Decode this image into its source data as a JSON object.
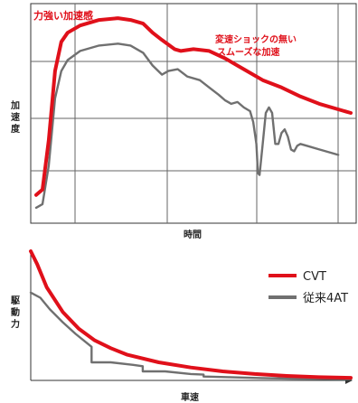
{
  "chart_data": [
    {
      "type": "line",
      "title": "",
      "xlabel": "時間",
      "ylabel": [
        "加",
        "速",
        "度"
      ],
      "grid": true,
      "series": [
        {
          "name": "",
          "color": "#e0101a",
          "x": [
            0,
            2,
            4,
            6,
            8,
            10,
            14,
            20,
            26,
            30,
            34,
            37,
            40,
            44,
            46,
            50,
            55,
            60,
            66,
            72,
            78,
            84,
            90,
            96,
            100
          ],
          "y": [
            0.02,
            0.05,
            0.32,
            0.7,
            0.86,
            0.91,
            0.95,
            0.98,
            0.99,
            0.98,
            0.96,
            0.91,
            0.87,
            0.82,
            0.81,
            0.82,
            0.81,
            0.77,
            0.71,
            0.65,
            0.61,
            0.56,
            0.52,
            0.49,
            0.47
          ]
        },
        {
          "name": "",
          "color": "#707070",
          "x": [
            0,
            2,
            4,
            6,
            8,
            10,
            14,
            20,
            26,
            30,
            34,
            37,
            40,
            42,
            45,
            48,
            52,
            55,
            58,
            60,
            62,
            64,
            66,
            68,
            69,
            70,
            70.5,
            71,
            72,
            73,
            74,
            75,
            76,
            77,
            78,
            79,
            80,
            81,
            82,
            83,
            84,
            86,
            90,
            96
          ],
          "y": [
            -0.05,
            -0.03,
            0.18,
            0.55,
            0.7,
            0.76,
            0.81,
            0.84,
            0.85,
            0.84,
            0.8,
            0.73,
            0.68,
            0.7,
            0.71,
            0.67,
            0.65,
            0.61,
            0.57,
            0.54,
            0.52,
            0.53,
            0.5,
            0.48,
            0.42,
            0.3,
            0.14,
            0.13,
            0.3,
            0.47,
            0.5,
            0.47,
            0.3,
            0.3,
            0.36,
            0.38,
            0.34,
            0.27,
            0.26,
            0.29,
            0.3,
            0.29,
            0.27,
            0.24
          ]
        }
      ],
      "xlim": [
        0,
        100
      ],
      "ylim": [
        -0.1,
        1.04
      ],
      "annotations": [
        {
          "text": "力強い加速感",
          "color": "#e0101a"
        },
        {
          "text": "変速ショックの無い",
          "color": "#e0101a"
        },
        {
          "text": "スムーズな加速",
          "color": "#e0101a"
        }
      ]
    },
    {
      "type": "line",
      "title": "",
      "xlabel": "車速",
      "ylabel": [
        "駆",
        "動",
        "力"
      ],
      "grid": false,
      "legend": "right",
      "series": [
        {
          "name": "CVT",
          "color": "#e0101a",
          "x": [
            0,
            2,
            5,
            10,
            15,
            20,
            25,
            30,
            40,
            50,
            60,
            70,
            80,
            90,
            100
          ],
          "y": [
            1.0,
            0.9,
            0.72,
            0.53,
            0.4,
            0.31,
            0.25,
            0.2,
            0.14,
            0.1,
            0.07,
            0.05,
            0.035,
            0.025,
            0.02
          ]
        },
        {
          "name": "従来4AT",
          "color": "#707070",
          "x": [
            0,
            3,
            6,
            10,
            14,
            17,
            19,
            19,
            25,
            32,
            35,
            35,
            42,
            50,
            54,
            54,
            62,
            72,
            82,
            92,
            100
          ],
          "y": [
            0.68,
            0.64,
            0.55,
            0.45,
            0.36,
            0.3,
            0.26,
            0.14,
            0.14,
            0.12,
            0.11,
            0.07,
            0.07,
            0.05,
            0.045,
            0.03,
            0.025,
            0.018,
            0.014,
            0.012,
            0.01
          ]
        }
      ],
      "xlim": [
        0,
        100
      ],
      "ylim": [
        0,
        1.0
      ]
    }
  ]
}
